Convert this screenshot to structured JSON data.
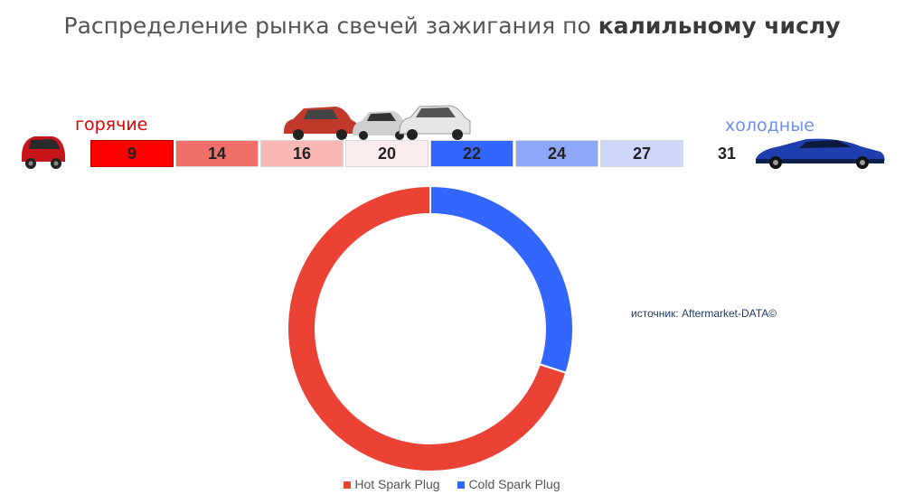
{
  "title": {
    "prefix": "Распределение рынка свечей зажигания по ",
    "bold": "калильному числу"
  },
  "labels": {
    "hot": "горячие",
    "cold": "холодные"
  },
  "scale": [
    {
      "value": "9",
      "color": "#ff0000"
    },
    {
      "value": "14",
      "color": "#f07069"
    },
    {
      "value": "16",
      "color": "#f9b8b4"
    },
    {
      "value": "20",
      "color": "#fdeced"
    },
    {
      "value": "22",
      "color": "#3366ff"
    },
    {
      "value": "24",
      "color": "#8ea8f8"
    },
    {
      "value": "27",
      "color": "#cfd6fb"
    },
    {
      "value": "31",
      "color": "#ffffff"
    }
  ],
  "source": "источник: Aftermarket-DATA©",
  "chart_data": {
    "type": "pie",
    "variant": "donut",
    "series": [
      {
        "name": "Hot Spark Plug",
        "value": 70,
        "color": "#ea4335"
      },
      {
        "name": "Cold Spark Plug",
        "value": 30,
        "color": "#3366ff"
      }
    ],
    "legend_position": "bottom"
  }
}
